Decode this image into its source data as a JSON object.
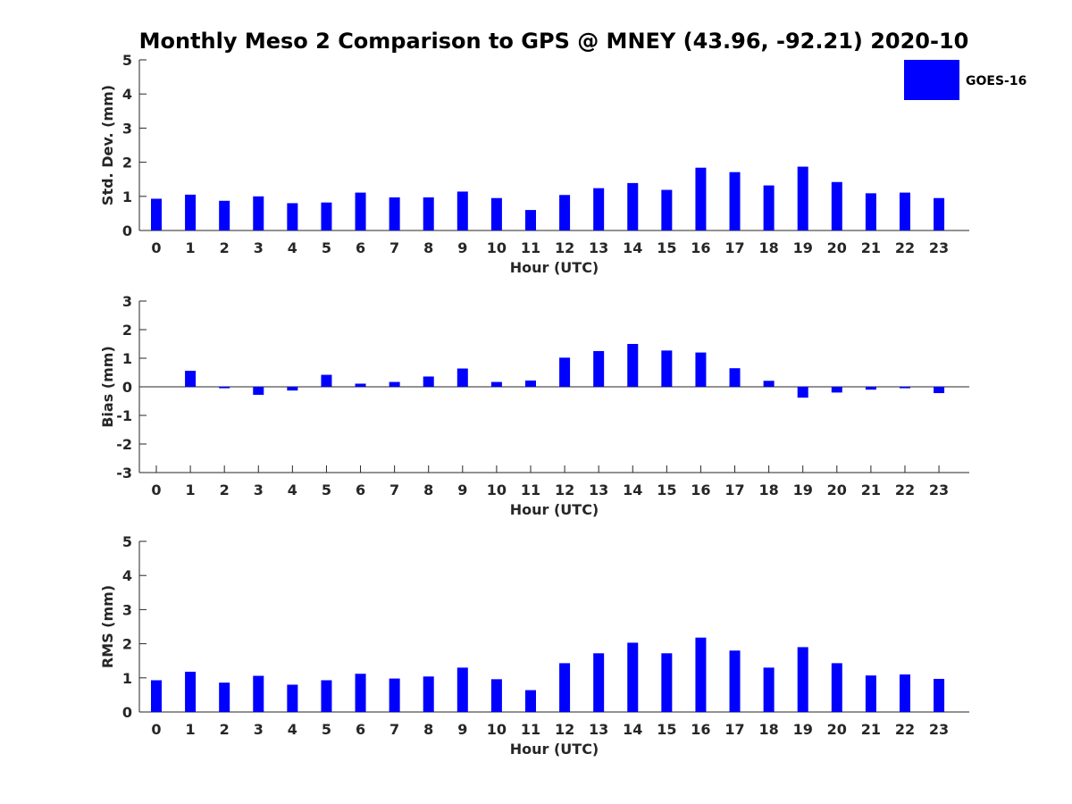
{
  "title": "Monthly Meso 2 Comparison to GPS @ MNEY (43.96, -92.21) 2020-10",
  "legend": {
    "label": "GOES-16",
    "color": "#0000ff"
  },
  "chart_data": [
    {
      "type": "bar",
      "ylabel": "Std. Dev. (mm)",
      "xlabel": "Hour (UTC)",
      "ylim": [
        0,
        5
      ],
      "yticks": [
        "0",
        "1",
        "2",
        "3",
        "4",
        "5"
      ],
      "categories": [
        "0",
        "1",
        "2",
        "3",
        "4",
        "5",
        "6",
        "7",
        "8",
        "9",
        "10",
        "11",
        "12",
        "13",
        "14",
        "15",
        "16",
        "17",
        "18",
        "19",
        "20",
        "21",
        "22",
        "23"
      ],
      "series": [
        {
          "name": "GOES-16",
          "color": "#0000ff",
          "values": [
            0.93,
            1.05,
            0.87,
            1.0,
            0.8,
            0.82,
            1.11,
            0.97,
            0.97,
            1.14,
            0.95,
            0.6,
            1.04,
            1.24,
            1.39,
            1.19,
            1.84,
            1.71,
            1.32,
            1.87,
            1.42,
            1.09,
            1.11,
            0.95
          ]
        }
      ]
    },
    {
      "type": "bar",
      "ylabel": "Bias (mm)",
      "xlabel": "Hour (UTC)",
      "ylim": [
        -3,
        3
      ],
      "yticks": [
        "-3",
        "-2",
        "-1",
        "0",
        "1",
        "2",
        "3"
      ],
      "categories": [
        "0",
        "1",
        "2",
        "3",
        "4",
        "5",
        "6",
        "7",
        "8",
        "9",
        "10",
        "11",
        "12",
        "13",
        "14",
        "15",
        "16",
        "17",
        "18",
        "19",
        "20",
        "21",
        "22",
        "23"
      ],
      "series": [
        {
          "name": "GOES-16",
          "color": "#0000ff",
          "values": [
            0.0,
            0.56,
            -0.05,
            -0.28,
            -0.13,
            0.42,
            0.11,
            0.17,
            0.36,
            0.64,
            0.17,
            0.22,
            1.02,
            1.25,
            1.5,
            1.27,
            1.2,
            0.65,
            0.21,
            -0.38,
            -0.2,
            -0.1,
            -0.05,
            -0.22
          ]
        }
      ]
    },
    {
      "type": "bar",
      "ylabel": "RMS (mm)",
      "xlabel": "Hour (UTC)",
      "ylim": [
        0,
        5
      ],
      "yticks": [
        "0",
        "1",
        "2",
        "3",
        "4",
        "5"
      ],
      "categories": [
        "0",
        "1",
        "2",
        "3",
        "4",
        "5",
        "6",
        "7",
        "8",
        "9",
        "10",
        "11",
        "12",
        "13",
        "14",
        "15",
        "16",
        "17",
        "18",
        "19",
        "20",
        "21",
        "22",
        "23"
      ],
      "series": [
        {
          "name": "GOES-16",
          "color": "#0000ff",
          "values": [
            0.93,
            1.18,
            0.86,
            1.06,
            0.8,
            0.93,
            1.12,
            0.98,
            1.04,
            1.3,
            0.96,
            0.64,
            1.43,
            1.72,
            2.03,
            1.72,
            2.18,
            1.8,
            1.3,
            1.9,
            1.43,
            1.07,
            1.1,
            0.97
          ]
        }
      ]
    }
  ]
}
